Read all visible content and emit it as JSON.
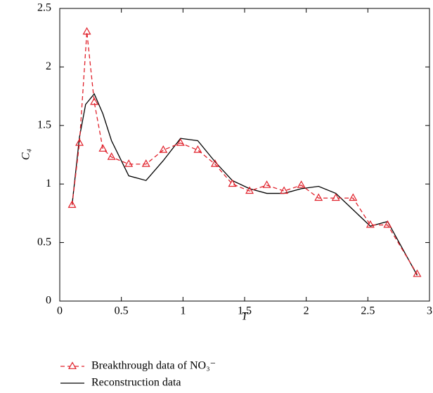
{
  "chart_data": {
    "type": "line",
    "x_label": "T",
    "y_label": "C₄",
    "xlim": [
      0,
      3
    ],
    "ylim": [
      0,
      2.5
    ],
    "xticks": [
      0,
      0.5,
      1,
      1.5,
      2,
      2.5,
      3
    ],
    "yticks": [
      0,
      0.5,
      1,
      1.5,
      2,
      2.5
    ],
    "series": [
      {
        "name": "Breakthrough data of NO₃⁻",
        "color": "#e0202a",
        "dashed": true,
        "marker": "triangle",
        "x": [
          0.1,
          0.16,
          0.22,
          0.28,
          0.35,
          0.42,
          0.56,
          0.7,
          0.84,
          0.98,
          1.12,
          1.26,
          1.4,
          1.54,
          1.68,
          1.82,
          1.96,
          2.1,
          2.24,
          2.38,
          2.52,
          2.66,
          2.9
        ],
        "values": [
          0.82,
          1.35,
          2.3,
          1.7,
          1.3,
          1.23,
          1.17,
          1.17,
          1.29,
          1.35,
          1.29,
          1.17,
          1.0,
          0.94,
          0.99,
          0.94,
          0.99,
          0.88,
          0.88,
          0.88,
          0.65,
          0.65,
          0.23
        ]
      },
      {
        "name": "Reconstruction data",
        "color": "#000000",
        "dashed": false,
        "x": [
          0.1,
          0.16,
          0.21,
          0.28,
          0.35,
          0.42,
          0.56,
          0.7,
          0.84,
          0.98,
          1.12,
          1.26,
          1.4,
          1.54,
          1.68,
          1.82,
          1.96,
          2.1,
          2.24,
          2.38,
          2.52,
          2.66,
          2.9
        ],
        "values": [
          0.82,
          1.4,
          1.68,
          1.77,
          1.6,
          1.37,
          1.07,
          1.03,
          1.2,
          1.39,
          1.37,
          1.19,
          1.03,
          0.96,
          0.92,
          0.92,
          0.96,
          0.98,
          0.92,
          0.78,
          0.64,
          0.68,
          0.22
        ]
      }
    ]
  }
}
